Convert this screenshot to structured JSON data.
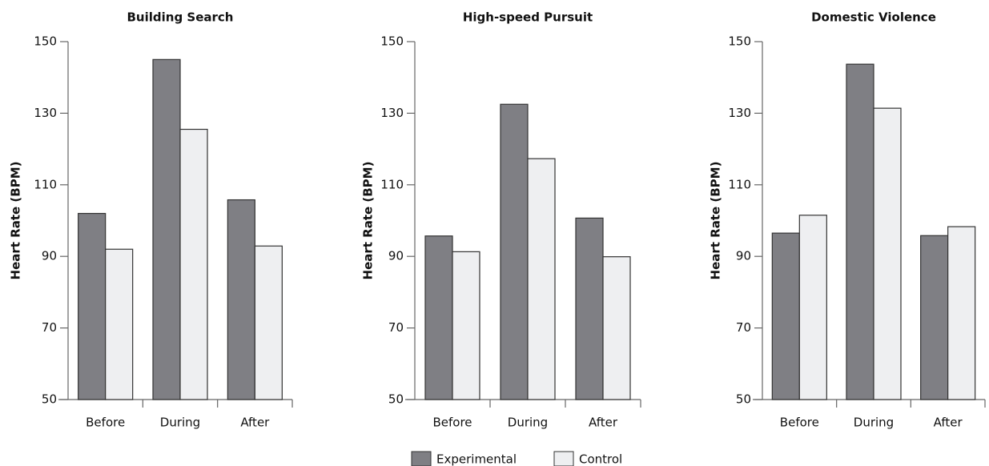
{
  "chart_data": [
    {
      "type": "bar",
      "title": "Building Search",
      "y_label": "Heart Rate (BPM)",
      "categories": [
        "Before",
        "During",
        "After"
      ],
      "series": [
        {
          "name": "Experimental",
          "color": "#7f7f84",
          "values": [
            102,
            145,
            105.8
          ]
        },
        {
          "name": "Control",
          "color": "#eeeff1",
          "values": [
            92,
            125.5,
            92.9
          ]
        }
      ],
      "ylim": [
        50,
        150
      ],
      "yticks": [
        50,
        70,
        90,
        110,
        130,
        150
      ]
    },
    {
      "type": "bar",
      "title": "High-speed Pursuit",
      "y_label": "Heart Rate (BPM)",
      "categories": [
        "Before",
        "During",
        "After"
      ],
      "series": [
        {
          "color": "#7f7f84",
          "values": [
            95.7,
            132.5,
            100.7
          ]
        },
        {
          "color": "#eeeff1",
          "values": [
            91.3,
            117.3,
            89.9
          ]
        }
      ],
      "ylim": [
        50,
        150
      ],
      "yticks": [
        50,
        70,
        90,
        110,
        130,
        150
      ]
    },
    {
      "type": "bar",
      "title": "Domestic Violence",
      "y_label": "Heart Rate (BPM)",
      "categories": [
        "Before",
        "During",
        "After"
      ],
      "series": [
        {
          "color": "#7f7f84",
          "values": [
            96.5,
            143.7,
            95.8
          ]
        },
        {
          "color": "#eeeff1",
          "values": [
            101.5,
            131.4,
            98.3
          ]
        }
      ],
      "ylim": [
        50,
        150
      ],
      "yticks": [
        50,
        70,
        90,
        110,
        130,
        150
      ]
    }
  ]
}
